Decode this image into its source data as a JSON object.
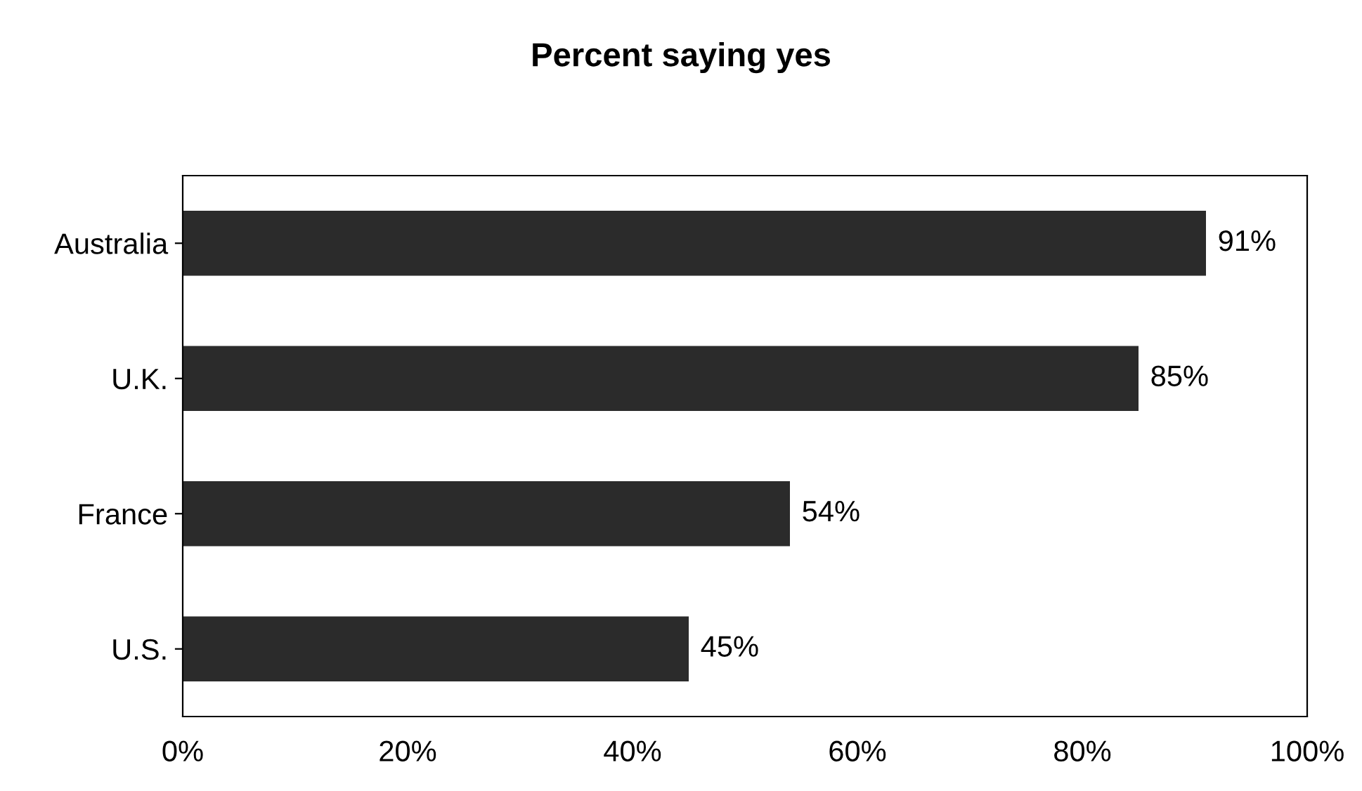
{
  "chart_data": {
    "type": "bar",
    "orientation": "horizontal",
    "title": "Percent saying yes",
    "categories": [
      "Australia",
      "U.K.",
      "France",
      "U.S."
    ],
    "values": [
      91,
      85,
      54,
      45
    ],
    "value_labels": [
      "91%",
      "85%",
      "54%",
      "45%"
    ],
    "color": "#2b2b2b",
    "xlim": [
      0,
      100
    ],
    "xticks": [
      {
        "value": 0,
        "label": "0%"
      },
      {
        "value": 20,
        "label": "20%"
      },
      {
        "value": 40,
        "label": "40%"
      },
      {
        "value": 60,
        "label": "60%"
      },
      {
        "value": 80,
        "label": "80%"
      },
      {
        "value": 100,
        "label": "100%"
      }
    ],
    "grid": false,
    "legend": false
  }
}
